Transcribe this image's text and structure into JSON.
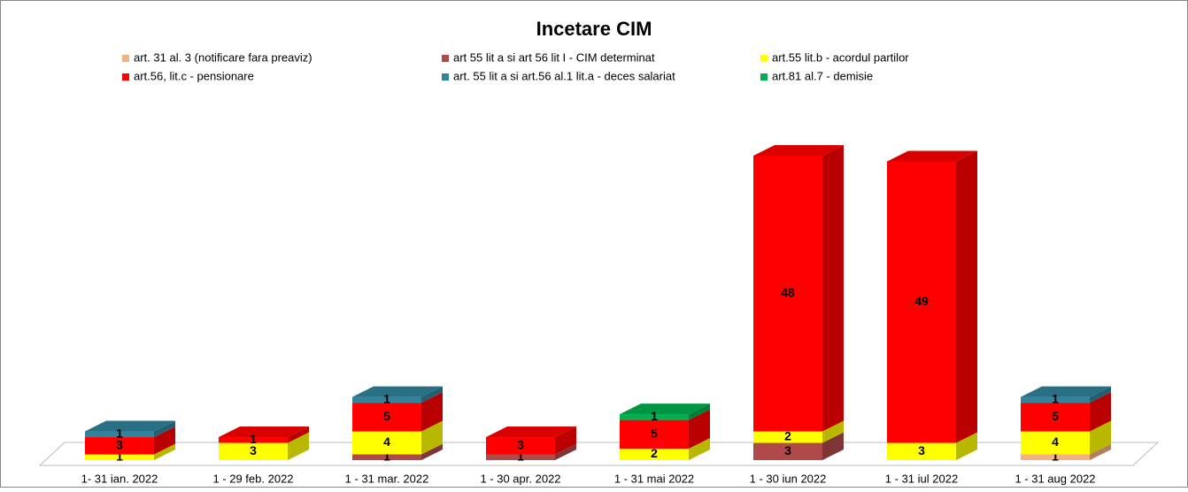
{
  "chart_data": {
    "type": "bar3d_stacked",
    "title": "Incetare CIM",
    "categories": [
      "1- 31 ian. 2022",
      "1 - 29 feb. 2022",
      "1 - 31 mar. 2022",
      "1 - 30 apr. 2022",
      "1 - 31 mai  2022",
      "1 - 30 iun 2022",
      "1 - 31 iul 2022",
      "1 - 31 aug 2022"
    ],
    "series": [
      {
        "name": "art. 31 al. 3 (notificare fara preaviz)",
        "color": "#f4b183",
        "values": [
          null,
          null,
          null,
          null,
          null,
          null,
          null,
          1
        ]
      },
      {
        "name": "art 55 lit a si art 56 lit I - CIM determinat",
        "color": "#b04a4a",
        "values": [
          null,
          null,
          1,
          1,
          null,
          3,
          null,
          null
        ]
      },
      {
        "name": "art.55 lit.b - acordul partilor",
        "color": "#ffff00",
        "values": [
          1,
          3,
          4,
          null,
          2,
          2,
          3,
          4
        ]
      },
      {
        "name": "art.56, lit.c - pensionare",
        "color": "#ff0000",
        "values": [
          3,
          1,
          5,
          3,
          5,
          48,
          49,
          5
        ]
      },
      {
        "name": "art. 55 lit a si art.56 al.1 lit.a - deces salariat",
        "color": "#31849b",
        "values": [
          1,
          null,
          1,
          null,
          null,
          null,
          null,
          1
        ]
      },
      {
        "name": "art.81 al.7 - demisie",
        "color": "#00b050",
        "values": [
          null,
          null,
          null,
          null,
          1,
          null,
          null,
          null
        ]
      }
    ],
    "stacked": true,
    "legend": "top"
  }
}
